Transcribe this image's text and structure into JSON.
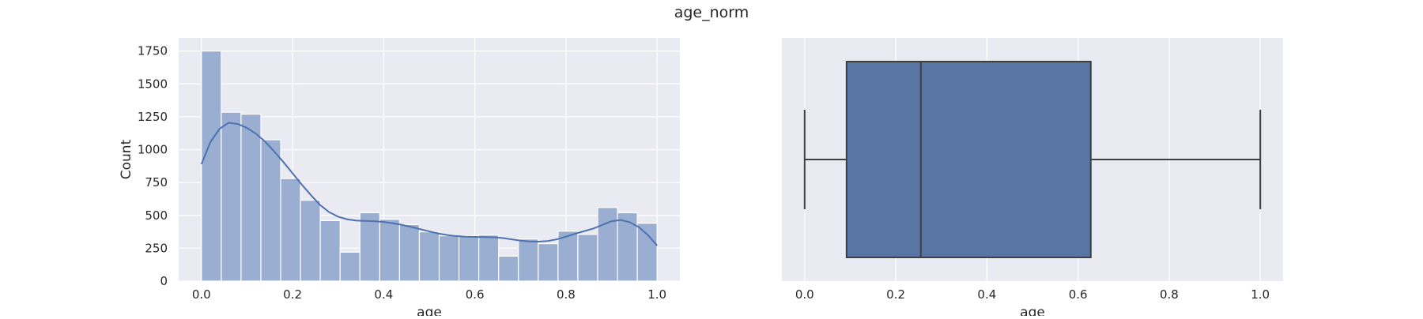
{
  "figure": {
    "title": "age_norm"
  },
  "colors": {
    "axes_bg": "#eaeaf2",
    "grid": "#ffffff",
    "hist_fill": "#9aaed1",
    "kde_line": "#4c72b0",
    "box_fill": "#5875a4",
    "box_line": "#3f3f3f",
    "text": "#262626"
  },
  "chart_data": [
    {
      "type": "bar",
      "subtype": "histogram_with_kde",
      "xlabel": "age",
      "ylabel": "Count",
      "xlim": [
        -0.05,
        1.05
      ],
      "ylim": [
        0,
        1850
      ],
      "xticks": [
        0.0,
        0.2,
        0.4,
        0.6,
        0.8,
        1.0
      ],
      "xtick_labels": [
        "0.0",
        "0.2",
        "0.4",
        "0.6",
        "0.8",
        "1.0"
      ],
      "yticks": [
        0,
        250,
        500,
        750,
        1000,
        1250,
        1500,
        1750
      ],
      "ytick_labels": [
        "0",
        "250",
        "500",
        "750",
        "1000",
        "1250",
        "1500",
        "1750"
      ],
      "grid": true,
      "bin_width": 0.04347826,
      "bin_edges_start": 0.0,
      "values": [
        1750,
        1285,
        1270,
        1075,
        780,
        615,
        460,
        220,
        520,
        470,
        430,
        375,
        345,
        345,
        350,
        190,
        320,
        285,
        380,
        355,
        560,
        520,
        440
      ],
      "kde": {
        "x": [
          0.0,
          0.02,
          0.04,
          0.06,
          0.08,
          0.1,
          0.12,
          0.14,
          0.16,
          0.18,
          0.2,
          0.22,
          0.24,
          0.26,
          0.28,
          0.3,
          0.32,
          0.34,
          0.36,
          0.38,
          0.4,
          0.42,
          0.44,
          0.46,
          0.48,
          0.5,
          0.52,
          0.54,
          0.56,
          0.58,
          0.6,
          0.62,
          0.64,
          0.66,
          0.68,
          0.7,
          0.72,
          0.74,
          0.76,
          0.78,
          0.8,
          0.82,
          0.84,
          0.86,
          0.88,
          0.9,
          0.92,
          0.94,
          0.96,
          0.98,
          1.0
        ],
        "y": [
          890,
          1060,
          1160,
          1205,
          1195,
          1165,
          1120,
          1060,
          985,
          905,
          820,
          735,
          655,
          580,
          525,
          490,
          470,
          460,
          458,
          455,
          450,
          440,
          428,
          412,
          395,
          378,
          362,
          350,
          342,
          338,
          336,
          335,
          333,
          328,
          318,
          308,
          302,
          300,
          305,
          318,
          338,
          360,
          380,
          400,
          428,
          455,
          465,
          448,
          410,
          350,
          270
        ]
      }
    },
    {
      "type": "box",
      "xlabel": "age",
      "xlim": [
        -0.05,
        1.05
      ],
      "xticks": [
        0.0,
        0.2,
        0.4,
        0.6,
        0.8,
        1.0
      ],
      "xtick_labels": [
        "0.0",
        "0.2",
        "0.4",
        "0.6",
        "0.8",
        "1.0"
      ],
      "grid": true,
      "min": 0.0,
      "q1": 0.092,
      "median": 0.255,
      "q3": 0.628,
      "max": 1.0
    }
  ]
}
